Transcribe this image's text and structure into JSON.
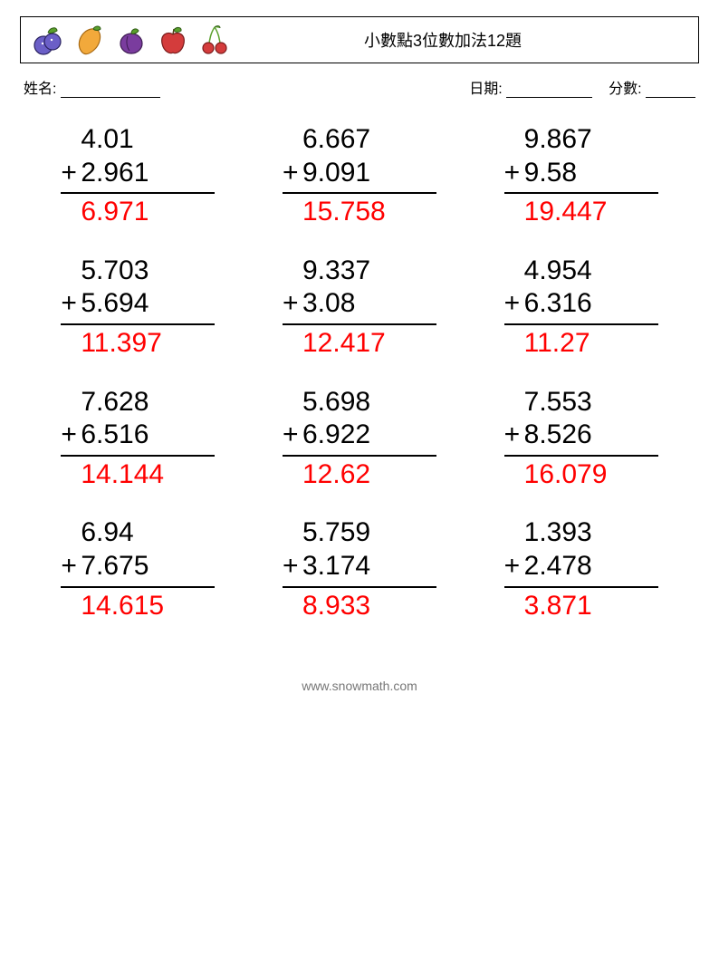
{
  "header": {
    "title": "小數點3位數加法12題",
    "name_label": "姓名:",
    "date_label": "日期:",
    "score_label": "分數:"
  },
  "style": {
    "problem_fontsize": 30,
    "problem_color": "#000000",
    "answer_color": "#ff0000",
    "rule_color": "#000000",
    "grid_cols": 3,
    "grid_rows": 4
  },
  "problems": [
    {
      "a": "4.01",
      "b": "2.961",
      "ans": "6.971"
    },
    {
      "a": "6.667",
      "b": "9.091",
      "ans": "15.758"
    },
    {
      "a": "9.867",
      "b": "9.58",
      "ans": "19.447"
    },
    {
      "a": "5.703",
      "b": "5.694",
      "ans": "11.397"
    },
    {
      "a": "9.337",
      "b": "3.08",
      "ans": "12.417"
    },
    {
      "a": "4.954",
      "b": "6.316",
      "ans": "11.27"
    },
    {
      "a": "7.628",
      "b": "6.516",
      "ans": "14.144"
    },
    {
      "a": "5.698",
      "b": "6.922",
      "ans": "12.62"
    },
    {
      "a": "7.553",
      "b": "8.526",
      "ans": "16.079"
    },
    {
      "a": "6.94",
      "b": "7.675",
      "ans": "14.615"
    },
    {
      "a": "5.759",
      "b": "3.174",
      "ans": "8.933"
    },
    {
      "a": "1.393",
      "b": "2.478",
      "ans": "3.871"
    }
  ],
  "operator": "+",
  "footer": {
    "url": "www.snowmath.com"
  },
  "fruit_icons": [
    "blueberry",
    "mango",
    "plum",
    "apple",
    "cherry"
  ],
  "fruit_colors": {
    "blueberry_fill": "#6b5fc7",
    "blueberry_leaf": "#5aa02c",
    "mango_fill": "#f2a93b",
    "mango_leaf": "#5aa02c",
    "plum_fill": "#7a3c9e",
    "plum_leaf": "#5aa02c",
    "apple_fill": "#d43c3c",
    "apple_leaf": "#5aa02c",
    "cherry_fill": "#d43c3c",
    "cherry_stem": "#5aa02c"
  }
}
